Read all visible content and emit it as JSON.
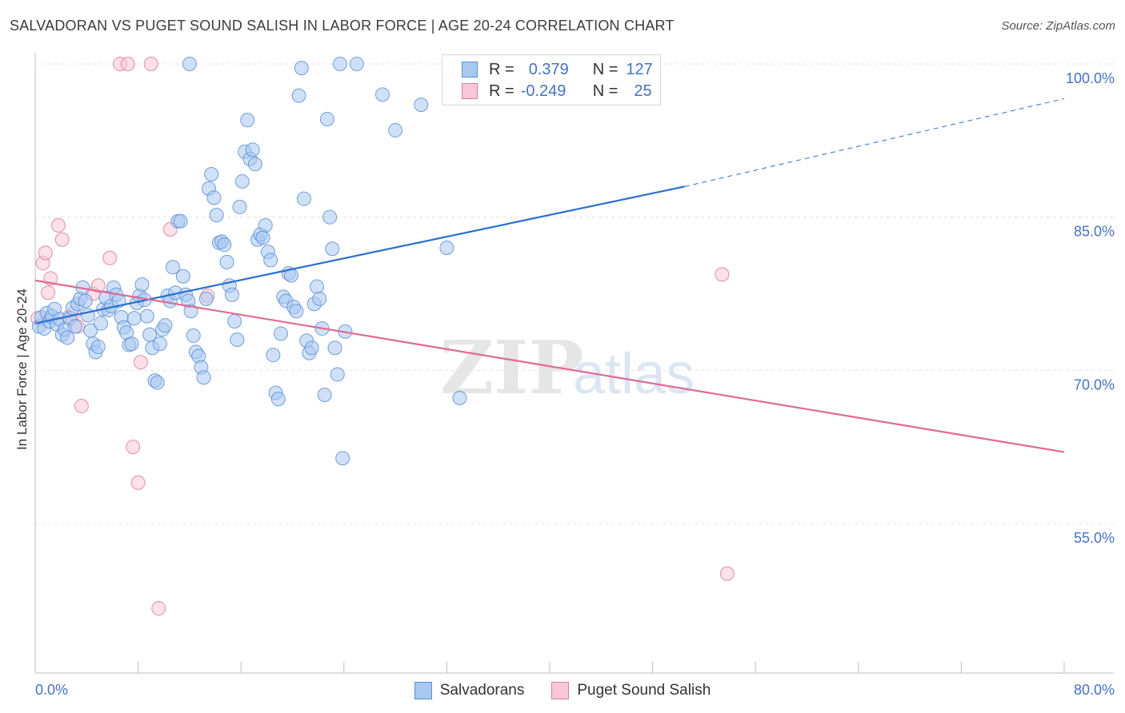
{
  "header": {
    "title": "SALVADORAN VS PUGET SOUND SALISH IN LABOR FORCE | AGE 20-24 CORRELATION CHART",
    "source": "Source: ZipAtlas.com"
  },
  "watermark": {
    "part1": "ZIP",
    "part2": "atlas"
  },
  "legend": {
    "rows": [
      {
        "r_label": "R =",
        "r_value": "0.379",
        "n_label": "N =",
        "n_value": "127",
        "color": "#a9c8f0",
        "border": "#5b8fd6"
      },
      {
        "r_label": "R =",
        "r_value": "-0.249",
        "n_label": "N =",
        "n_value": "25",
        "color": "#f8c8d6",
        "border": "#e07a9b"
      }
    ]
  },
  "colors": {
    "blue_fill": "#a9c8f0",
    "blue_stroke": "#5b8fd6",
    "blue_line": "#2a6fd1",
    "pink_fill": "#f8c8d6",
    "pink_stroke": "#e07a9b",
    "pink_line": "#e06a93",
    "tick_text": "#4472c4",
    "grid": "#e2e2e2"
  },
  "chart_data": {
    "type": "scatter",
    "title": "SALVADORAN VS PUGET SOUND SALISH IN LABOR FORCE | AGE 20-24 CORRELATION CHART",
    "xlabel": "",
    "ylabel": "In Labor Force | Age 20-24",
    "xlim": [
      0,
      80
    ],
    "ylim": [
      40,
      102
    ],
    "x_tick_labels": [
      "0.0%",
      "80.0%"
    ],
    "y_ticks": [
      55,
      70,
      85,
      100
    ],
    "y_tick_labels": [
      "55.0%",
      "70.0%",
      "85.0%",
      "100.0%"
    ],
    "grid": true,
    "legend_position": "top-center",
    "series": [
      {
        "name": "Salvadorans",
        "color": "#a9c8f0",
        "points": [
          [
            0.3,
            74.3
          ],
          [
            0.5,
            75.2
          ],
          [
            0.7,
            74.1
          ],
          [
            0.9,
            75.6
          ],
          [
            1.1,
            74.8
          ],
          [
            1.3,
            75.3
          ],
          [
            1.5,
            76.0
          ],
          [
            1.7,
            74.5
          ],
          [
            1.9,
            75.0
          ],
          [
            2.1,
            73.5
          ],
          [
            2.3,
            74.0
          ],
          [
            2.5,
            73.2
          ],
          [
            2.7,
            75.1
          ],
          [
            2.9,
            76.1
          ],
          [
            3.1,
            74.3
          ],
          [
            3.3,
            76.5
          ],
          [
            3.5,
            77.0
          ],
          [
            3.7,
            78.1
          ],
          [
            3.9,
            76.8
          ],
          [
            4.1,
            75.4
          ],
          [
            4.3,
            73.9
          ],
          [
            4.5,
            72.6
          ],
          [
            4.7,
            71.8
          ],
          [
            4.9,
            72.3
          ],
          [
            5.1,
            74.6
          ],
          [
            5.3,
            76.0
          ],
          [
            5.5,
            77.1
          ],
          [
            5.7,
            75.9
          ],
          [
            5.9,
            76.3
          ],
          [
            6.1,
            78.1
          ],
          [
            6.3,
            77.4
          ],
          [
            6.5,
            76.8
          ],
          [
            6.7,
            75.2
          ],
          [
            6.9,
            74.2
          ],
          [
            7.1,
            73.7
          ],
          [
            7.3,
            72.5
          ],
          [
            7.5,
            72.6
          ],
          [
            7.7,
            75.1
          ],
          [
            7.9,
            76.6
          ],
          [
            8.1,
            77.3
          ],
          [
            8.3,
            78.4
          ],
          [
            8.5,
            76.9
          ],
          [
            8.7,
            75.3
          ],
          [
            8.9,
            73.5
          ],
          [
            9.1,
            72.2
          ],
          [
            9.3,
            69.0
          ],
          [
            9.5,
            68.8
          ],
          [
            9.7,
            72.6
          ],
          [
            9.9,
            74.0
          ],
          [
            10.1,
            74.4
          ],
          [
            10.3,
            77.3
          ],
          [
            10.5,
            76.8
          ],
          [
            10.7,
            80.1
          ],
          [
            10.9,
            77.6
          ],
          [
            11.1,
            84.6
          ],
          [
            11.3,
            84.6
          ],
          [
            11.5,
            79.2
          ],
          [
            11.7,
            77.4
          ],
          [
            11.9,
            76.8
          ],
          [
            12.1,
            75.8
          ],
          [
            12.3,
            73.4
          ],
          [
            12.5,
            71.8
          ],
          [
            12.7,
            71.4
          ],
          [
            12.9,
            70.3
          ],
          [
            13.1,
            69.3
          ],
          [
            13.3,
            77.0
          ],
          [
            13.5,
            87.8
          ],
          [
            13.7,
            89.2
          ],
          [
            13.9,
            86.9
          ],
          [
            14.1,
            85.2
          ],
          [
            14.3,
            82.5
          ],
          [
            14.5,
            82.6
          ],
          [
            14.7,
            82.3
          ],
          [
            14.9,
            80.6
          ],
          [
            15.1,
            78.3
          ],
          [
            15.3,
            77.4
          ],
          [
            15.5,
            74.8
          ],
          [
            15.7,
            73.0
          ],
          [
            15.9,
            86.0
          ],
          [
            16.1,
            88.5
          ],
          [
            16.3,
            91.4
          ],
          [
            16.5,
            94.5
          ],
          [
            16.7,
            90.7
          ],
          [
            16.9,
            91.6
          ],
          [
            17.1,
            90.2
          ],
          [
            17.3,
            82.8
          ],
          [
            17.5,
            83.3
          ],
          [
            17.7,
            83.0
          ],
          [
            17.9,
            84.2
          ],
          [
            18.1,
            81.6
          ],
          [
            18.3,
            80.8
          ],
          [
            18.5,
            71.5
          ],
          [
            18.7,
            67.8
          ],
          [
            18.9,
            67.2
          ],
          [
            19.1,
            73.6
          ],
          [
            19.3,
            77.2
          ],
          [
            19.5,
            76.8
          ],
          [
            19.7,
            79.5
          ],
          [
            19.9,
            79.3
          ],
          [
            20.1,
            76.2
          ],
          [
            20.3,
            75.8
          ],
          [
            20.5,
            96.9
          ],
          [
            20.7,
            99.6
          ],
          [
            20.9,
            86.8
          ],
          [
            21.1,
            72.9
          ],
          [
            21.3,
            71.7
          ],
          [
            21.5,
            72.2
          ],
          [
            21.7,
            76.5
          ],
          [
            21.9,
            78.2
          ],
          [
            22.1,
            77.0
          ],
          [
            22.3,
            74.1
          ],
          [
            22.5,
            67.6
          ],
          [
            22.7,
            94.6
          ],
          [
            22.9,
            85.0
          ],
          [
            23.1,
            81.9
          ],
          [
            23.3,
            72.2
          ],
          [
            23.5,
            69.6
          ],
          [
            23.7,
            100.0
          ],
          [
            23.9,
            61.4
          ],
          [
            24.1,
            73.8
          ],
          [
            12.0,
            100.0
          ],
          [
            25.0,
            100.0
          ],
          [
            27.0,
            97.0
          ],
          [
            28.0,
            93.5
          ],
          [
            30.0,
            96.0
          ],
          [
            32.0,
            82.0
          ],
          [
            33.0,
            67.3
          ]
        ],
        "trend": {
          "x": [
            0,
            50.5
          ],
          "y": [
            74.6,
            88.0
          ],
          "dashed_extension": {
            "x": [
              50.5,
              80
            ],
            "y": [
              88.0,
              96.6
            ]
          }
        }
      },
      {
        "name": "Puget Sound Salish",
        "color": "#f8c8d6",
        "points": [
          [
            0.2,
            75.1
          ],
          [
            0.6,
            80.5
          ],
          [
            0.8,
            81.5
          ],
          [
            1.0,
            77.6
          ],
          [
            1.2,
            79.0
          ],
          [
            1.8,
            84.2
          ],
          [
            2.1,
            82.8
          ],
          [
            2.6,
            75.2
          ],
          [
            3.0,
            75.6
          ],
          [
            3.3,
            74.3
          ],
          [
            3.6,
            66.5
          ],
          [
            4.5,
            77.5
          ],
          [
            4.9,
            78.3
          ],
          [
            5.8,
            81.0
          ],
          [
            6.6,
            100.0
          ],
          [
            7.2,
            100.0
          ],
          [
            7.6,
            62.5
          ],
          [
            8.0,
            59.0
          ],
          [
            8.2,
            70.8
          ],
          [
            9.0,
            100.0
          ],
          [
            9.6,
            46.7
          ],
          [
            10.5,
            83.8
          ],
          [
            13.4,
            77.3
          ],
          [
            53.4,
            79.4
          ],
          [
            53.8,
            50.1
          ]
        ],
        "trend": {
          "x": [
            0,
            80
          ],
          "y": [
            78.8,
            62.0
          ]
        }
      }
    ]
  },
  "bottom_legend": [
    {
      "label": "Salvadorans",
      "color": "#a9c8f0",
      "border": "#5b8fd6"
    },
    {
      "label": "Puget Sound Salish",
      "color": "#f8c8d6",
      "border": "#e07a9b"
    }
  ]
}
